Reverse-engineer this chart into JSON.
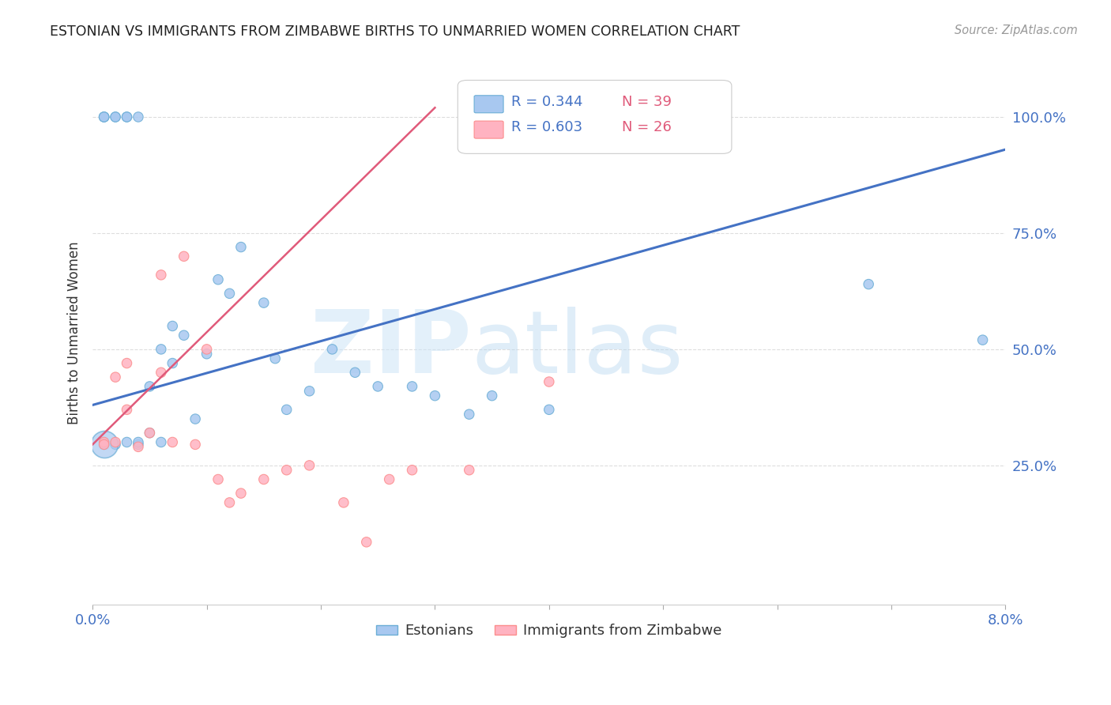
{
  "title": "ESTONIAN VS IMMIGRANTS FROM ZIMBABWE BIRTHS TO UNMARRIED WOMEN CORRELATION CHART",
  "source": "Source: ZipAtlas.com",
  "ylabel": "Births to Unmarried Women",
  "legend_entry1_r": "R = 0.344",
  "legend_entry1_n": "N = 39",
  "legend_entry2_r": "R = 0.603",
  "legend_entry2_n": "N = 26",
  "legend_label1": "Estonians",
  "legend_label2": "Immigrants from Zimbabwe",
  "blue_marker_color": "#a8c8f0",
  "blue_edge_color": "#6baed6",
  "pink_marker_color": "#ffb3c1",
  "pink_edge_color": "#fc8d8d",
  "line_blue_color": "#4472c4",
  "line_pink_color": "#e05a7a",
  "grid_color": "#dddddd",
  "title_color": "#222222",
  "source_color": "#999999",
  "blue_scatter_x": [
    0.001,
    0.001,
    0.001,
    0.001,
    0.002,
    0.002,
    0.002,
    0.003,
    0.003,
    0.003,
    0.004,
    0.004,
    0.004,
    0.005,
    0.005,
    0.006,
    0.006,
    0.007,
    0.007,
    0.008,
    0.009,
    0.01,
    0.011,
    0.012,
    0.013,
    0.015,
    0.016,
    0.017,
    0.019,
    0.021,
    0.023,
    0.025,
    0.028,
    0.03,
    0.033,
    0.035,
    0.04,
    0.068,
    0.078
  ],
  "blue_scatter_y": [
    1.0,
    1.0,
    1.0,
    0.295,
    1.0,
    1.0,
    0.295,
    1.0,
    1.0,
    0.3,
    1.0,
    0.295,
    0.3,
    0.42,
    0.32,
    0.5,
    0.3,
    0.55,
    0.47,
    0.53,
    0.35,
    0.49,
    0.65,
    0.62,
    0.72,
    0.6,
    0.48,
    0.37,
    0.41,
    0.5,
    0.45,
    0.42,
    0.42,
    0.4,
    0.36,
    0.4,
    0.37,
    0.64,
    0.52
  ],
  "blue_scatter_sizes": [
    80,
    80,
    80,
    80,
    80,
    80,
    80,
    80,
    80,
    80,
    80,
    80,
    80,
    80,
    80,
    80,
    80,
    80,
    80,
    80,
    80,
    80,
    80,
    80,
    80,
    80,
    80,
    80,
    80,
    80,
    80,
    80,
    80,
    80,
    80,
    80,
    80,
    80,
    80
  ],
  "blue_big_x": [
    0.001
  ],
  "blue_big_y": [
    0.295
  ],
  "blue_big_size": [
    600
  ],
  "pink_scatter_x": [
    0.001,
    0.001,
    0.002,
    0.002,
    0.003,
    0.003,
    0.004,
    0.005,
    0.006,
    0.006,
    0.007,
    0.008,
    0.009,
    0.01,
    0.011,
    0.012,
    0.013,
    0.015,
    0.017,
    0.019,
    0.022,
    0.024,
    0.026,
    0.028,
    0.033,
    0.04
  ],
  "pink_scatter_y": [
    0.3,
    0.295,
    0.44,
    0.3,
    0.37,
    0.47,
    0.29,
    0.32,
    0.45,
    0.66,
    0.3,
    0.7,
    0.295,
    0.5,
    0.22,
    0.17,
    0.19,
    0.22,
    0.24,
    0.25,
    0.17,
    0.085,
    0.22,
    0.24,
    0.24,
    0.43
  ],
  "pink_scatter_sizes": [
    80,
    80,
    80,
    80,
    80,
    80,
    80,
    80,
    80,
    80,
    80,
    80,
    80,
    80,
    80,
    80,
    80,
    80,
    80,
    80,
    80,
    80,
    80,
    80,
    80,
    80
  ],
  "blue_line": [
    0.0,
    0.08,
    0.38,
    0.93
  ],
  "pink_line": [
    0.0,
    0.03,
    0.295,
    1.02
  ],
  "xlim": [
    0.0,
    0.08
  ],
  "ylim": [
    -0.05,
    1.12
  ],
  "yticks": [
    0.25,
    0.5,
    0.75,
    1.0
  ],
  "ytick_labels": [
    "25.0%",
    "50.0%",
    "75.0%",
    "100.0%"
  ],
  "xtick_vals": [
    0.0,
    0.01,
    0.02,
    0.03,
    0.04,
    0.05,
    0.06,
    0.07,
    0.08
  ],
  "xtick_labels": [
    "0.0%",
    "",
    "",
    "",
    "",
    "",
    "",
    "",
    "8.0%"
  ]
}
